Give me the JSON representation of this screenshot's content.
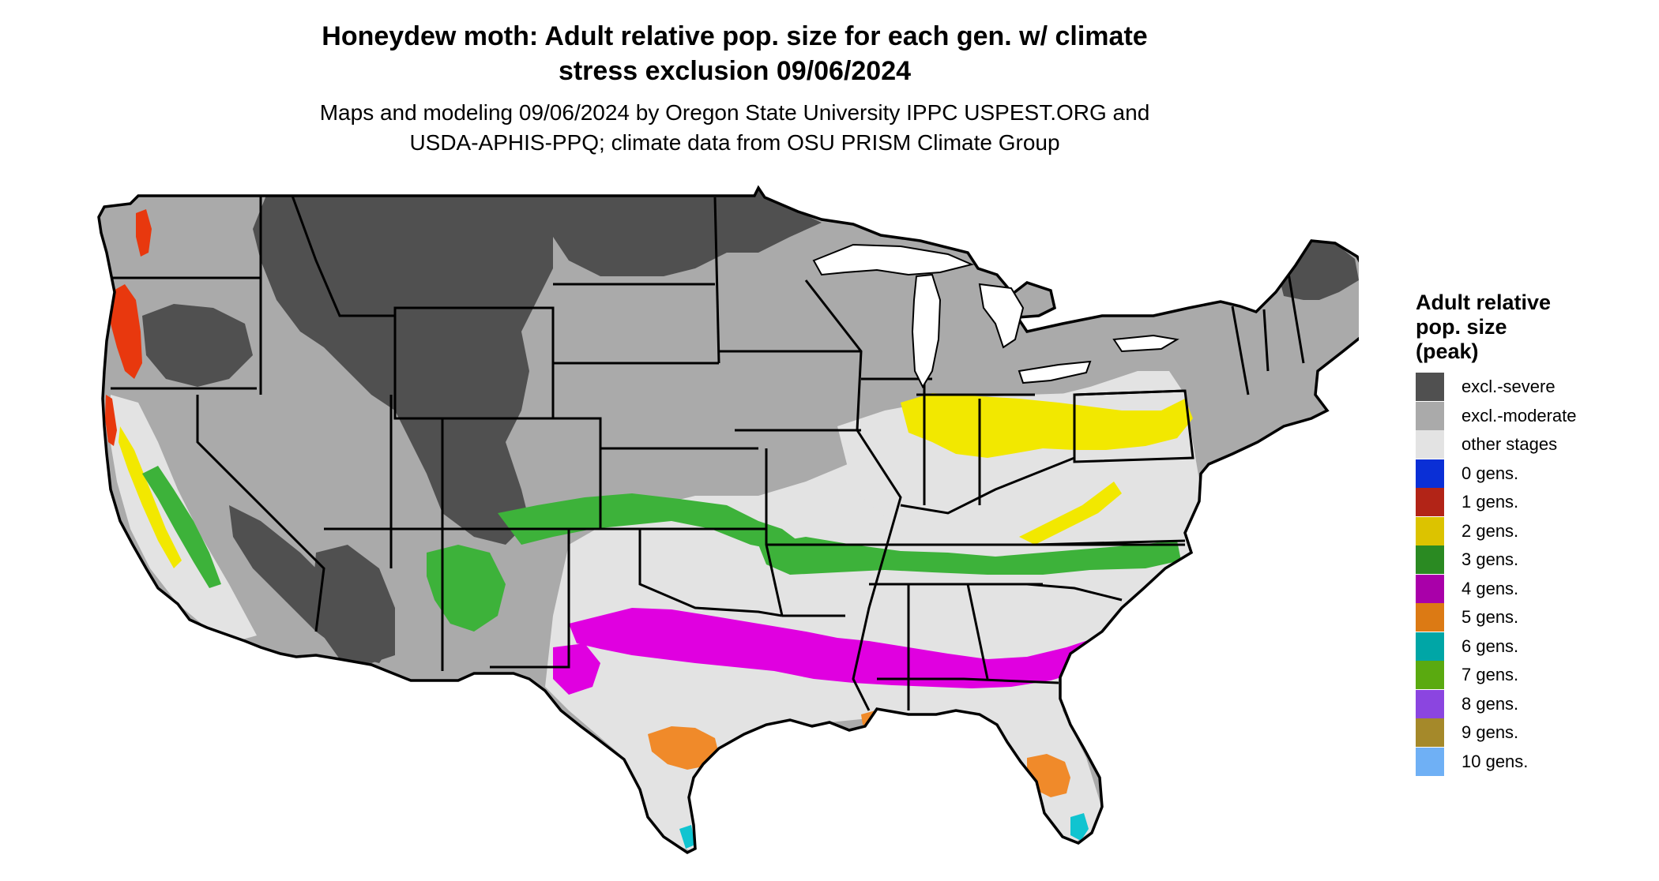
{
  "title": {
    "line1": "Honeydew moth: Adult relative pop. size for each gen. w/ climate",
    "line2": "stress exclusion 09/06/2024"
  },
  "subtitle": {
    "line1": "Maps and modeling 09/06/2024 by Oregon State University IPPC USPEST.ORG and",
    "line2": "USDA-APHIS-PPQ; climate data from OSU PRISM Climate Group"
  },
  "legend": {
    "title_lines": [
      "Adult relative",
      "pop. size",
      "(peak)"
    ],
    "items": [
      {
        "label": "excl.-severe",
        "color": "#505050"
      },
      {
        "label": "excl.-moderate",
        "color": "#AAAAAA"
      },
      {
        "label": "other stages",
        "color": "#E3E3E3"
      },
      {
        "label": "0 gens.",
        "color": "#0A2FD6"
      },
      {
        "label": "1 gens.",
        "color": "#B22417"
      },
      {
        "label": "2 gens.",
        "color": "#DCC300"
      },
      {
        "label": "3 gens.",
        "color": "#2A8A22"
      },
      {
        "label": "4 gens.",
        "color": "#A900A9"
      },
      {
        "label": "5 gens.",
        "color": "#DC7A14"
      },
      {
        "label": "6 gens.",
        "color": "#00A6A6"
      },
      {
        "label": "7 gens.",
        "color": "#5AAA10"
      },
      {
        "label": "8 gens.",
        "color": "#8B45E0"
      },
      {
        "label": "9 gens.",
        "color": "#A5892A"
      },
      {
        "label": "10 gens.",
        "color": "#6FB0F5"
      }
    ]
  },
  "map_colors": {
    "severe": "#505050",
    "moderate": "#AAAAAA",
    "other": "#E3E3E3",
    "gen1": "#E8380E",
    "gen2": "#F2E800",
    "gen3": "#3DB23A",
    "gen4": "#E000E0",
    "gen5": "#F08A2A",
    "gen6": "#10C4D0",
    "border": "#000000"
  }
}
